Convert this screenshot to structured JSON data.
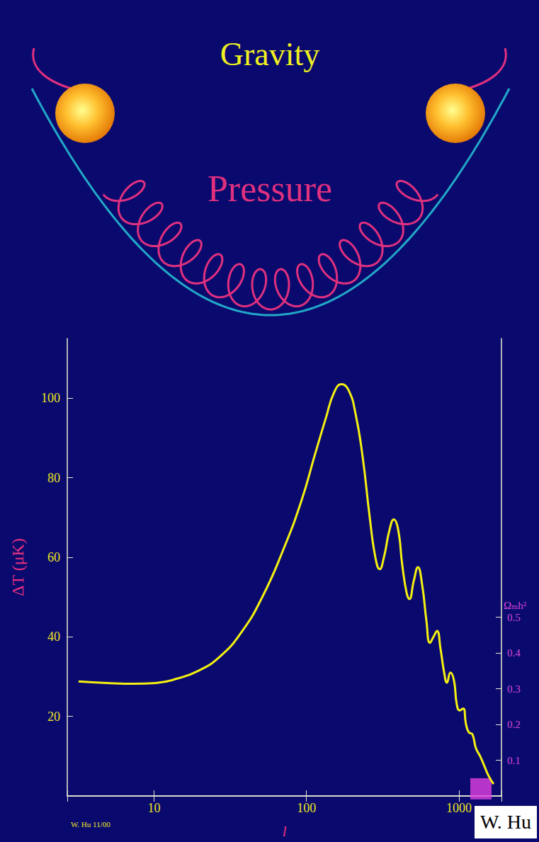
{
  "diagram": {
    "labels": [
      "Gravity",
      "Pressure"
    ]
  },
  "chart_data": {
    "type": "line",
    "x_label": "l",
    "y_label": "ΔT (μK)",
    "y2_label": "Ωₘh²",
    "x": [
      3.2,
      4.9,
      7.5,
      10.3,
      14.2,
      19.6,
      27.0,
      37.2,
      51.3,
      70.6,
      92.3,
      114,
      134,
      152,
      170,
      189,
      210,
      234,
      260,
      283,
      302,
      322,
      351,
      374,
      399,
      425,
      454,
      473,
      505,
      538,
      574,
      612,
      645,
      681,
      718,
      757,
      800,
      834,
      879,
      928,
      968,
      1011,
      1066,
      1113,
      1161,
      1225,
      1292,
      1377,
      1469,
      1567,
      1687
    ],
    "values": [
      28.8,
      28.4,
      28.2,
      28.4,
      29.5,
      31.5,
      35,
      41,
      50,
      62,
      74,
      86,
      95,
      101.5,
      103.5,
      102,
      96,
      85,
      70,
      60,
      57,
      60,
      67,
      69.5,
      67,
      58,
      51,
      49.5,
      54,
      57.5,
      53,
      44,
      38.5,
      40,
      41.5,
      37,
      31,
      28.5,
      31,
      29,
      23,
      21.5,
      22,
      18,
      16,
      15.5,
      12,
      10,
      7.5,
      5,
      3
    ],
    "color": "#f4f010",
    "log": "x",
    "xlim": [
      2.7,
      1900
    ],
    "xticks": [
      10,
      100,
      1000
    ],
    "ylim": [
      0,
      115
    ],
    "yticks": [
      20,
      40,
      60,
      80,
      100
    ],
    "y2lim": [
      0,
      1.28
    ],
    "y2ticks": [
      0.1,
      0.2,
      0.3,
      0.4,
      0.5
    ],
    "y2_marker": 0.02,
    "grid": false,
    "annotations": [
      "W. Hu 11/00",
      "W. Hu"
    ]
  }
}
